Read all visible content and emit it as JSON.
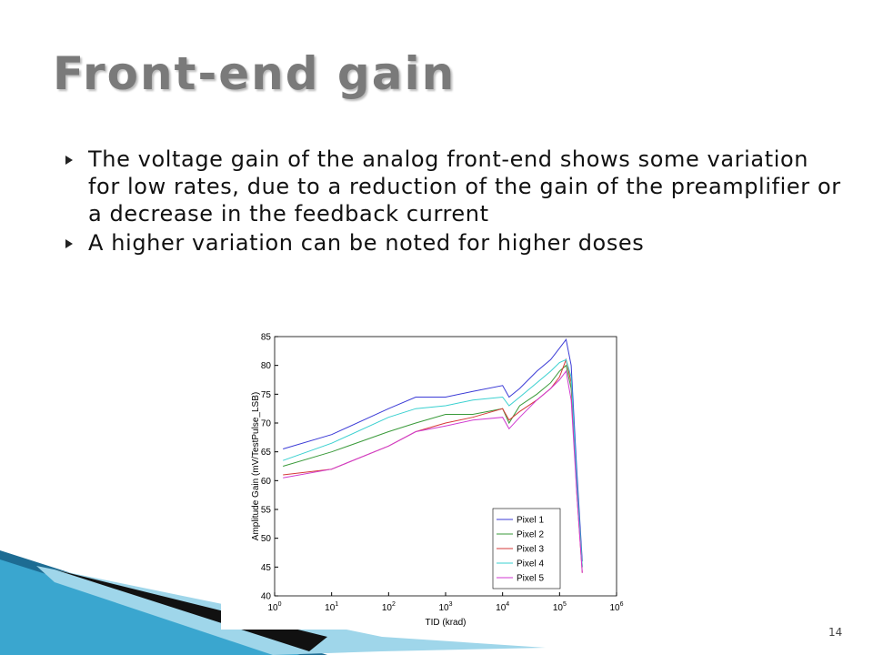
{
  "title": "Front-end gain",
  "bullets": [
    "The voltage gain of the analog front-end shows some variation for low rates, due to a reduction of the gain of the preamplifier or a decrease in the feedback current",
    "A higher variation can be noted for higher doses"
  ],
  "page_number": "14",
  "chart_data": {
    "type": "line",
    "x_label": "TID (krad)",
    "y_label": "Amplitude Gain (mV/TestPulse_LSB)",
    "xscale": "log",
    "xlim": [
      1,
      1000000
    ],
    "xticks": [
      {
        "value": 1,
        "label": "10^0"
      },
      {
        "value": 10,
        "label": "10^1"
      },
      {
        "value": 100,
        "label": "10^2"
      },
      {
        "value": 1000,
        "label": "10^3"
      },
      {
        "value": 10000,
        "label": "10^4"
      },
      {
        "value": 100000,
        "label": "10^5"
      },
      {
        "value": 1000000,
        "label": "10^6"
      }
    ],
    "ylim": [
      40,
      85
    ],
    "yticks": [
      40,
      45,
      50,
      55,
      60,
      65,
      70,
      75,
      80,
      85
    ],
    "legend": "lower right",
    "x": [
      1.4,
      10,
      100,
      300,
      1000,
      3000,
      10000,
      13000,
      20000,
      40000,
      70000,
      100000,
      130000,
      160000,
      200000,
      250000
    ],
    "series": [
      {
        "name": "Pixel 1",
        "color": "#3b3bd6",
        "values": [
          65.5,
          68,
          72.5,
          74.5,
          74.5,
          75.5,
          76.5,
          74.5,
          76,
          79,
          81,
          83,
          84.5,
          80,
          62,
          46
        ]
      },
      {
        "name": "Pixel 2",
        "color": "#3a9a3a",
        "values": [
          62.5,
          65,
          68.5,
          70,
          71.5,
          71.5,
          72.5,
          70,
          73,
          75,
          77,
          79,
          80,
          76,
          60,
          45
        ]
      },
      {
        "name": "Pixel 3",
        "color": "#d63a3a",
        "values": [
          61,
          62,
          66,
          68.5,
          70,
          71,
          72.5,
          70.5,
          72,
          74,
          76,
          78,
          81,
          77,
          58,
          44
        ]
      },
      {
        "name": "Pixel 4",
        "color": "#3ad0d0",
        "values": [
          63.5,
          66.5,
          71,
          72.5,
          73,
          74,
          74.5,
          73,
          74.5,
          77,
          79,
          80.5,
          81,
          78,
          60,
          45
        ]
      },
      {
        "name": "Pixel 5",
        "color": "#d03ad0",
        "values": [
          60.5,
          62,
          66,
          68.5,
          69.5,
          70.5,
          71,
          69,
          71,
          74,
          76,
          77.5,
          79,
          74,
          58,
          44
        ]
      }
    ]
  }
}
